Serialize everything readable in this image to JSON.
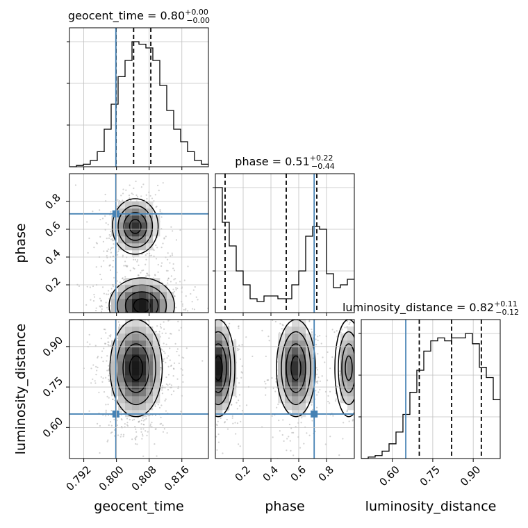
{
  "chart_data": {
    "type": "corner",
    "parameters": [
      "geocent_time",
      "phase",
      "luminosity_distance"
    ],
    "truths": {
      "geocent_time": 0.79985,
      "phase": 0.711,
      "luminosity_distance": 0.65
    },
    "colors": {
      "truth": "#4682b4",
      "hist": "#000000",
      "grid": "#c0c0c0",
      "points": "#9a9a9a"
    },
    "titles": [
      {
        "name": "geocent_time",
        "text": "geocent_time = 0.80",
        "plus": "+0.00",
        "minus": "−0.00"
      },
      {
        "name": "phase",
        "text": "phase = 0.51",
        "plus": "+0.22",
        "minus": "−0.44"
      },
      {
        "name": "luminosity_distance",
        "text": "luminosity_distance = 0.82",
        "plus": "+0.11",
        "minus": "−0.12"
      }
    ],
    "axis_labels": {
      "x": [
        "geocent_time",
        "phase",
        "luminosity_distance"
      ],
      "y": [
        "phase",
        "luminosity_distance"
      ]
    },
    "ranges": {
      "geocent_time": [
        0.7885,
        0.8225
      ],
      "phase": [
        0.0,
        1.0
      ],
      "luminosity_distance": [
        0.485,
        1.0
      ]
    },
    "ticks": {
      "geocent_time": [
        {
          "v": 0.792,
          "label": "0.792"
        },
        {
          "v": 0.8,
          "label": "0.800"
        },
        {
          "v": 0.808,
          "label": "0.808"
        },
        {
          "v": 0.816,
          "label": "0.816"
        }
      ],
      "phase": [
        {
          "v": 0.2,
          "label": "0.2"
        },
        {
          "v": 0.4,
          "label": "0.4"
        },
        {
          "v": 0.6,
          "label": "0.6"
        },
        {
          "v": 0.8,
          "label": "0.8"
        }
      ],
      "luminosity_distance": [
        {
          "v": 0.6,
          "label": "0.60"
        },
        {
          "v": 0.75,
          "label": "0.75"
        },
        {
          "v": 0.9,
          "label": "0.90"
        }
      ]
    },
    "quantiles": {
      "geocent_time": [
        0.7999,
        0.8042,
        0.8084
      ],
      "phase": [
        0.07,
        0.51,
        0.73
      ],
      "luminosity_distance": [
        0.7,
        0.82,
        0.93
      ]
    },
    "histograms": {
      "geocent_time": {
        "range": [
          0.7885,
          0.8225
        ],
        "counts": [
          0,
          0.01,
          0.02,
          0.05,
          0.12,
          0.3,
          0.5,
          0.72,
          0.85,
          1.0,
          0.98,
          0.95,
          0.85,
          0.65,
          0.45,
          0.3,
          0.2,
          0.12,
          0.05,
          0.02
        ]
      },
      "phase": {
        "range": [
          0,
          1
        ],
        "counts": [
          0.9,
          0.65,
          0.48,
          0.3,
          0.2,
          0.1,
          0.08,
          0.12,
          0.12,
          0.1,
          0.1,
          0.2,
          0.3,
          0.55,
          0.62,
          0.6,
          0.28,
          0.18,
          0.2,
          0.24
        ]
      },
      "luminosity_distance": {
        "range": [
          0.485,
          1.0
        ],
        "counts": [
          0,
          0.01,
          0.02,
          0.05,
          0.1,
          0.18,
          0.3,
          0.45,
          0.6,
          0.73,
          0.8,
          0.82,
          0.8,
          0.82,
          0.82,
          0.85,
          0.78,
          0.62,
          0.55,
          0.4
        ]
      }
    },
    "densities": {
      "geocent_time-phase": {
        "x_param": "geocent_time",
        "y_param": "phase",
        "modes": [
          {
            "x": 0.8046,
            "y": 0.62,
            "sx": 0.0028,
            "sy": 0.1,
            "w": 1.0
          },
          {
            "x": 0.8062,
            "y": 0.05,
            "sx": 0.004,
            "sy": 0.1,
            "w": 1.2
          }
        ]
      },
      "geocent_time-luminosity_distance": {
        "x_param": "geocent_time",
        "y_param": "luminosity_distance",
        "modes": [
          {
            "x": 0.8048,
            "y": 0.82,
            "sx": 0.0032,
            "sy": 0.09,
            "w": 1.0
          }
        ]
      },
      "phase-luminosity_distance": {
        "x_param": "phase",
        "y_param": "luminosity_distance",
        "modes": [
          {
            "x": 0.02,
            "y": 0.82,
            "sx": 0.06,
            "sy": 0.09,
            "w": 1.0
          },
          {
            "x": 0.58,
            "y": 0.82,
            "sx": 0.07,
            "sy": 0.09,
            "w": 0.85
          },
          {
            "x": 0.96,
            "y": 0.82,
            "sx": 0.05,
            "sy": 0.09,
            "w": 0.5
          }
        ]
      }
    },
    "grid": true
  }
}
